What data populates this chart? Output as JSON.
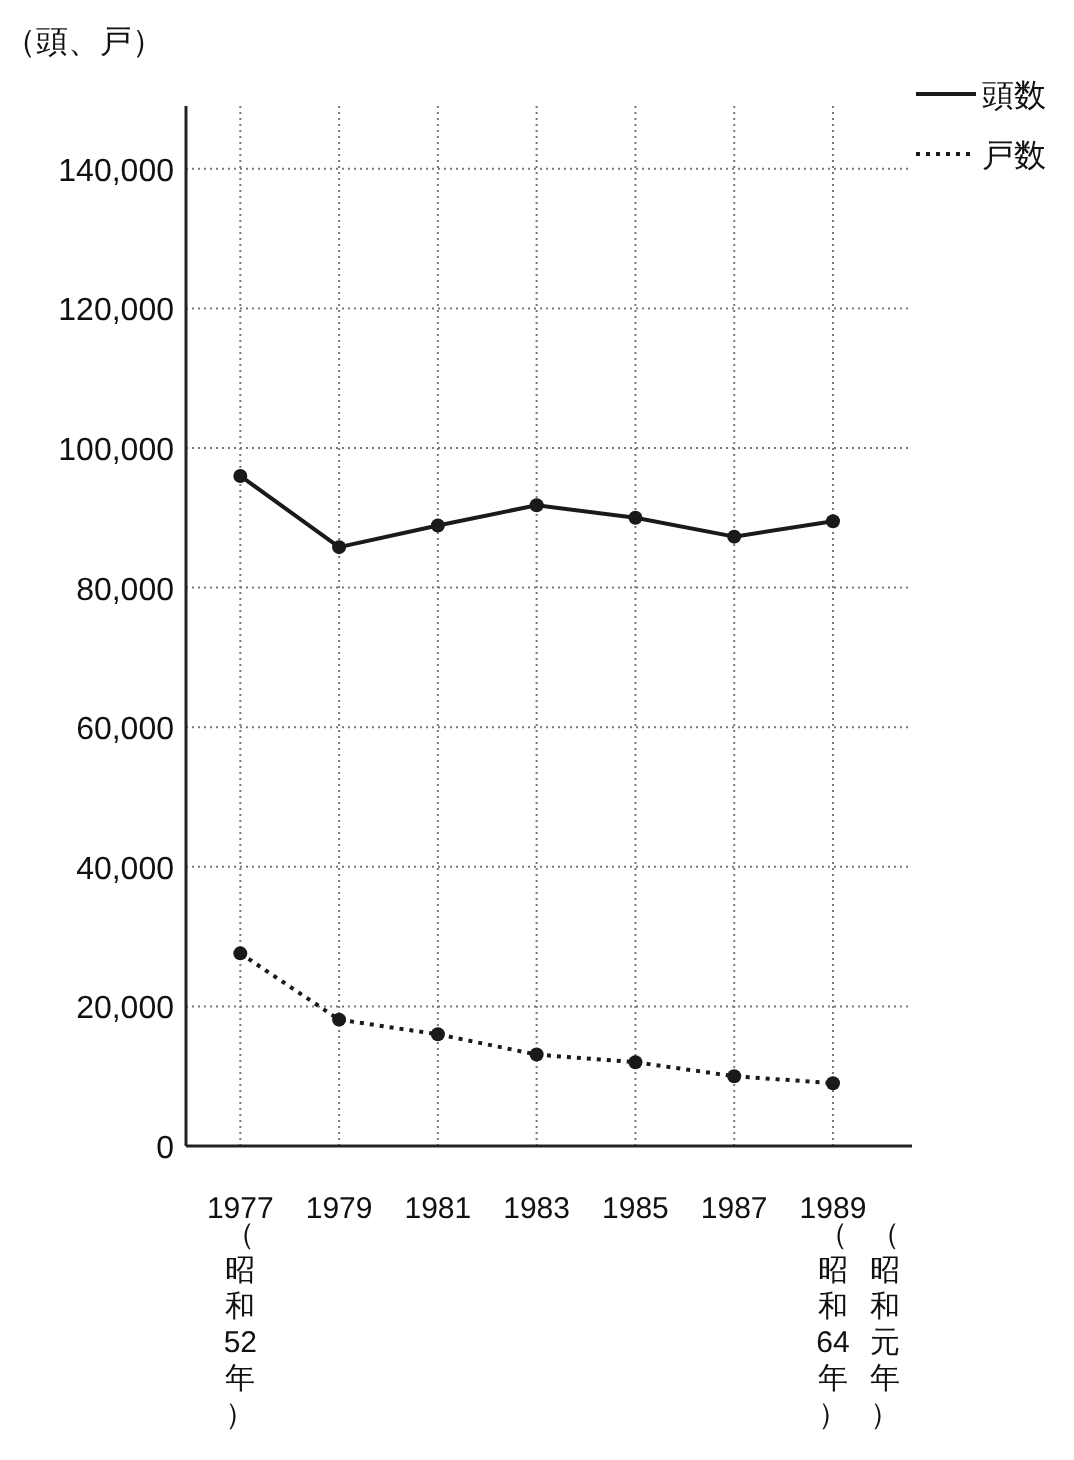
{
  "chart_data": {
    "type": "line",
    "ylabel": "（頭、戸）",
    "x": [
      1977,
      1979,
      1981,
      1983,
      1985,
      1987,
      1989
    ],
    "series": [
      {
        "name": "頭数",
        "color": "#1a1a1a",
        "line_style": "solid",
        "values": [
          96000,
          85800,
          88900,
          91800,
          90000,
          87300,
          89500
        ]
      },
      {
        "name": "戸数",
        "color": "#1a1a1a",
        "line_style": "dotted",
        "values": [
          27600,
          18100,
          16000,
          13100,
          12000,
          10000,
          9000
        ]
      }
    ],
    "xlim": [
      1975.9,
      1990.6
    ],
    "xticks": [
      1977,
      1979,
      1981,
      1983,
      1985,
      1987,
      1989
    ],
    "ylim": [
      0,
      149000
    ],
    "yticks": [
      0,
      {
        "value": 20000,
        "label": "20,000"
      },
      {
        "value": 40000,
        "label": "40,000"
      },
      {
        "value": 60000,
        "label": "60,000"
      },
      {
        "value": 80000,
        "label": "80,000"
      },
      {
        "value": 100000,
        "label": "100,000"
      },
      {
        "value": 120000,
        "label": "120,000"
      },
      {
        "value": 140000,
        "label": "140,000"
      }
    ],
    "grid": true,
    "marker": "circle",
    "legend": "top right",
    "annotations": [
      "（昭和52年）",
      "（昭和64年）",
      "（昭和元年）"
    ]
  }
}
